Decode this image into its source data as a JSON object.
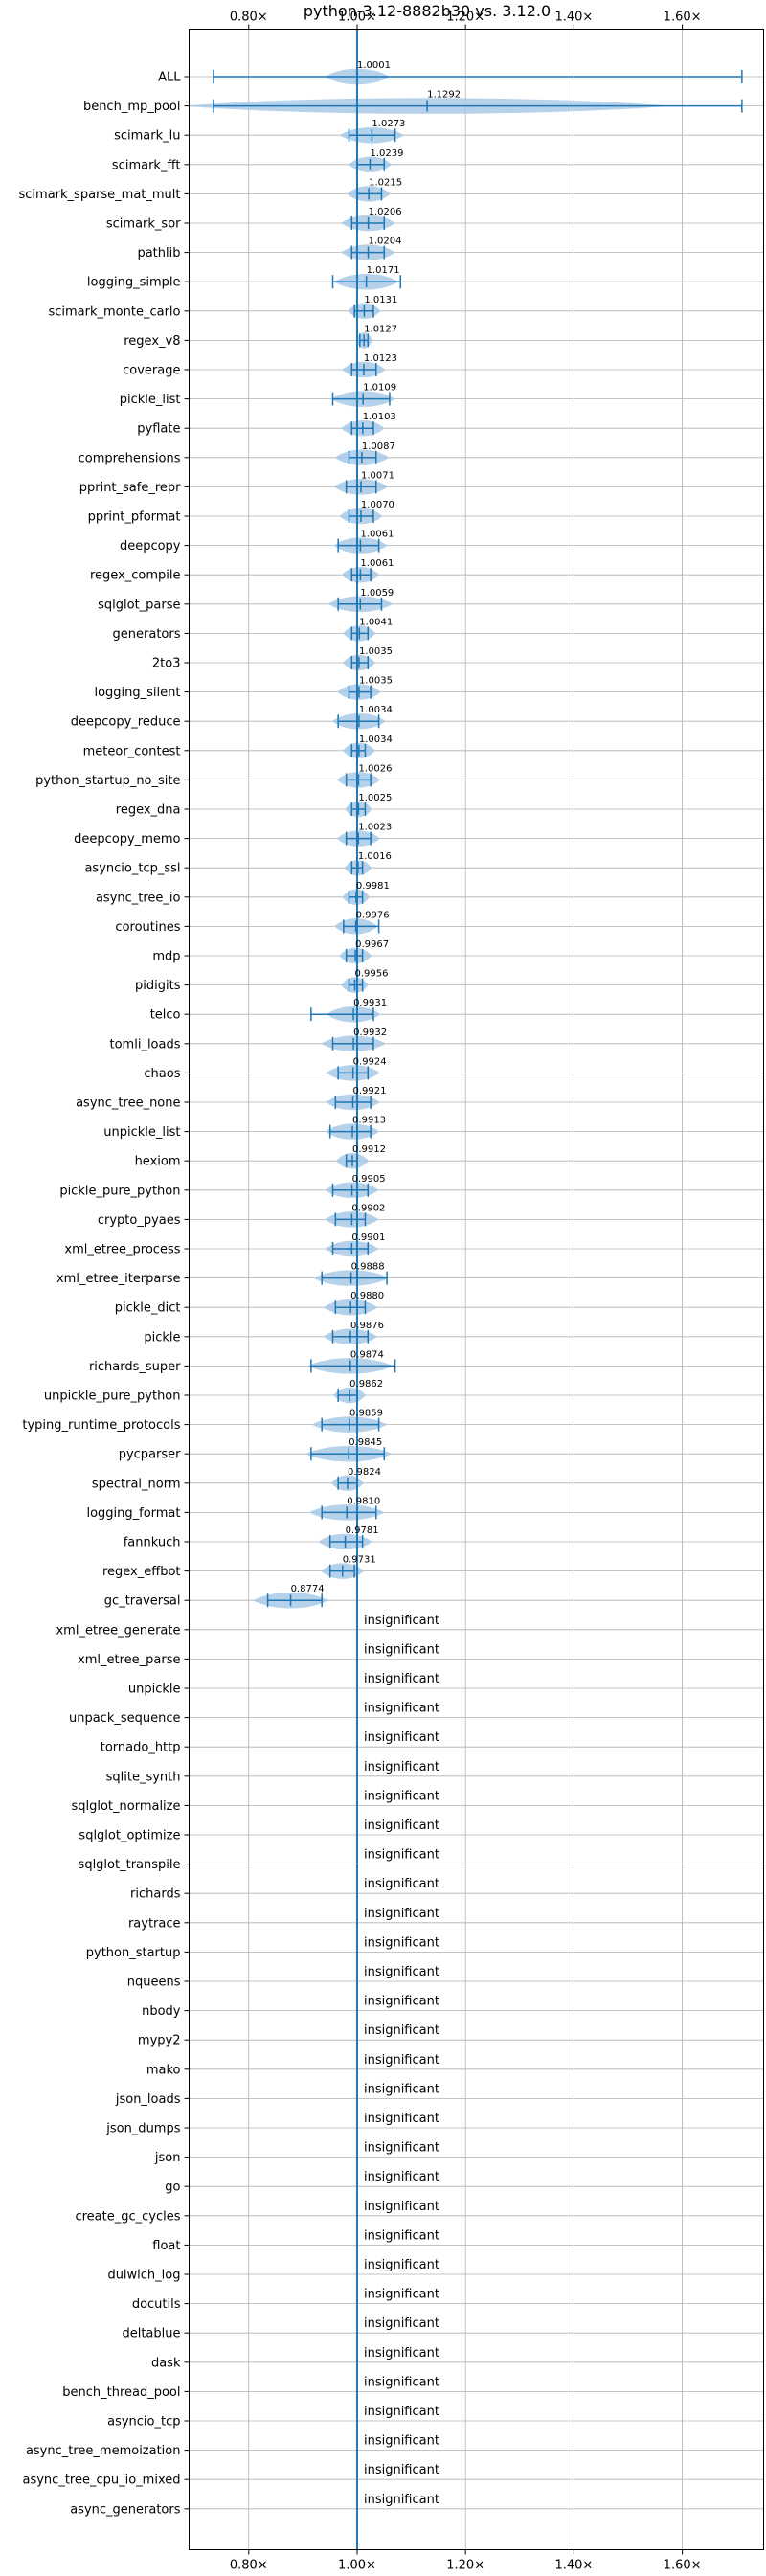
{
  "chart_data": {
    "type": "violin",
    "title": "python-3.12-8882b30 vs. 3.12.0",
    "x_ticks": [
      {
        "value": 0.8,
        "label": "0.80×"
      },
      {
        "value": 1.0,
        "label": "1.00×"
      },
      {
        "value": 1.2,
        "label": "1.20×"
      },
      {
        "value": 1.4,
        "label": "1.40×"
      },
      {
        "value": 1.6,
        "label": "1.60×"
      }
    ],
    "xlim": [
      0.69,
      1.75
    ],
    "reference_line": 1.0,
    "grid": true,
    "insignificant_label": "insignificant",
    "colors": {
      "violin": "#a9c9e6",
      "errorbar": "#1f77b4",
      "refline": "#1f77b4",
      "grid": "#b0b0b0"
    },
    "rows": [
      {
        "name": "ALL",
        "mean": 1.0001,
        "label": "1.0001",
        "lo": 0.735,
        "hi": 1.71,
        "w": 0.06
      },
      {
        "name": "bench_mp_pool",
        "mean": 1.1292,
        "label": "1.1292",
        "lo": 0.735,
        "hi": 1.71,
        "w": 0.45
      },
      {
        "name": "scimark_lu",
        "mean": 1.0273,
        "label": "1.0273",
        "lo": 0.985,
        "hi": 1.07,
        "w": 0.06
      },
      {
        "name": "scimark_fft",
        "mean": 1.0239,
        "label": "1.0239",
        "lo": 1.0,
        "hi": 1.05,
        "w": 0.04
      },
      {
        "name": "scimark_sparse_mat_mult",
        "mean": 1.0215,
        "label": "1.0215",
        "lo": 1.0,
        "hi": 1.045,
        "w": 0.04
      },
      {
        "name": "scimark_sor",
        "mean": 1.0206,
        "label": "1.0206",
        "lo": 0.99,
        "hi": 1.05,
        "w": 0.05
      },
      {
        "name": "pathlib",
        "mean": 1.0204,
        "label": "1.0204",
        "lo": 0.99,
        "hi": 1.05,
        "w": 0.05
      },
      {
        "name": "logging_simple",
        "mean": 1.0171,
        "label": "1.0171",
        "lo": 0.955,
        "hi": 1.08,
        "w": 0.06
      },
      {
        "name": "scimark_monte_carlo",
        "mean": 1.0131,
        "label": "1.0131",
        "lo": 0.995,
        "hi": 1.03,
        "w": 0.03
      },
      {
        "name": "regex_v8",
        "mean": 1.0127,
        "label": "1.0127",
        "lo": 1.005,
        "hi": 1.02,
        "w": 0.015
      },
      {
        "name": "coverage",
        "mean": 1.0123,
        "label": "1.0123",
        "lo": 0.99,
        "hi": 1.035,
        "w": 0.04
      },
      {
        "name": "pickle_list",
        "mean": 1.0109,
        "label": "1.0109",
        "lo": 0.955,
        "hi": 1.06,
        "w": 0.06
      },
      {
        "name": "pyflate",
        "mean": 1.0103,
        "label": "1.0103",
        "lo": 0.99,
        "hi": 1.03,
        "w": 0.04
      },
      {
        "name": "comprehensions",
        "mean": 1.0087,
        "label": "1.0087",
        "lo": 0.985,
        "hi": 1.035,
        "w": 0.05
      },
      {
        "name": "pprint_safe_repr",
        "mean": 1.0071,
        "label": "1.0071",
        "lo": 0.98,
        "hi": 1.035,
        "w": 0.05
      },
      {
        "name": "pprint_pformat",
        "mean": 1.007,
        "label": "1.0070",
        "lo": 0.985,
        "hi": 1.03,
        "w": 0.04
      },
      {
        "name": "deepcopy",
        "mean": 1.0061,
        "label": "1.0061",
        "lo": 0.965,
        "hi": 1.04,
        "w": 0.05
      },
      {
        "name": "regex_compile",
        "mean": 1.0061,
        "label": "1.0061",
        "lo": 0.99,
        "hi": 1.025,
        "w": 0.035
      },
      {
        "name": "sqlglot_parse",
        "mean": 1.0059,
        "label": "1.0059",
        "lo": 0.965,
        "hi": 1.045,
        "w": 0.06
      },
      {
        "name": "generators",
        "mean": 1.0041,
        "label": "1.0041",
        "lo": 0.99,
        "hi": 1.02,
        "w": 0.03
      },
      {
        "name": "2to3",
        "mean": 1.0035,
        "label": "1.0035",
        "lo": 0.99,
        "hi": 1.02,
        "w": 0.03
      },
      {
        "name": "logging_silent",
        "mean": 1.0035,
        "label": "1.0035",
        "lo": 0.985,
        "hi": 1.025,
        "w": 0.04
      },
      {
        "name": "deepcopy_reduce",
        "mean": 1.0034,
        "label": "1.0034",
        "lo": 0.965,
        "hi": 1.04,
        "w": 0.05
      },
      {
        "name": "meteor_contest",
        "mean": 1.0034,
        "label": "1.0034",
        "lo": 0.99,
        "hi": 1.015,
        "w": 0.03
      },
      {
        "name": "python_startup_no_site",
        "mean": 1.0026,
        "label": "1.0026",
        "lo": 0.98,
        "hi": 1.025,
        "w": 0.04
      },
      {
        "name": "regex_dna",
        "mean": 1.0025,
        "label": "1.0025",
        "lo": 0.99,
        "hi": 1.015,
        "w": 0.025
      },
      {
        "name": "deepcopy_memo",
        "mean": 1.0023,
        "label": "1.0023",
        "lo": 0.98,
        "hi": 1.025,
        "w": 0.04
      },
      {
        "name": "asyncio_tcp_ssl",
        "mean": 1.0016,
        "label": "1.0016",
        "lo": 0.99,
        "hi": 1.01,
        "w": 0.025
      },
      {
        "name": "async_tree_io",
        "mean": 0.9981,
        "label": "0.9981",
        "lo": 0.985,
        "hi": 1.01,
        "w": 0.025
      },
      {
        "name": "coroutines",
        "mean": 0.9976,
        "label": "0.9976",
        "lo": 0.975,
        "hi": 1.04,
        "w": 0.04
      },
      {
        "name": "mdp",
        "mean": 0.9967,
        "label": "0.9967",
        "lo": 0.98,
        "hi": 1.01,
        "w": 0.03
      },
      {
        "name": "pidigits",
        "mean": 0.9956,
        "label": "0.9956",
        "lo": 0.985,
        "hi": 1.01,
        "w": 0.025
      },
      {
        "name": "telco",
        "mean": 0.9931,
        "label": "0.9931",
        "lo": 0.915,
        "hi": 1.03,
        "w": 0.05
      },
      {
        "name": "tomli_loads",
        "mean": 0.9932,
        "label": "0.9932",
        "lo": 0.955,
        "hi": 1.03,
        "w": 0.06
      },
      {
        "name": "chaos",
        "mean": 0.9924,
        "label": "0.9924",
        "lo": 0.965,
        "hi": 1.02,
        "w": 0.05
      },
      {
        "name": "async_tree_none",
        "mean": 0.9921,
        "label": "0.9921",
        "lo": 0.96,
        "hi": 1.025,
        "w": 0.05
      },
      {
        "name": "unpickle_list",
        "mean": 0.9913,
        "label": "0.9913",
        "lo": 0.95,
        "hi": 1.025,
        "w": 0.05
      },
      {
        "name": "hexiom",
        "mean": 0.9912,
        "label": "0.9912",
        "lo": 0.98,
        "hi": 1.0,
        "w": 0.03
      },
      {
        "name": "pickle_pure_python",
        "mean": 0.9905,
        "label": "0.9905",
        "lo": 0.955,
        "hi": 1.02,
        "w": 0.05
      },
      {
        "name": "crypto_pyaes",
        "mean": 0.9902,
        "label": "0.9902",
        "lo": 0.96,
        "hi": 1.015,
        "w": 0.05
      },
      {
        "name": "xml_etree_process",
        "mean": 0.9901,
        "label": "0.9901",
        "lo": 0.955,
        "hi": 1.02,
        "w": 0.05
      },
      {
        "name": "xml_etree_iterparse",
        "mean": 0.9888,
        "label": "0.9888",
        "lo": 0.935,
        "hi": 1.055,
        "w": 0.07
      },
      {
        "name": "pickle_dict",
        "mean": 0.988,
        "label": "0.9880",
        "lo": 0.96,
        "hi": 1.015,
        "w": 0.05
      },
      {
        "name": "pickle",
        "mean": 0.9876,
        "label": "0.9876",
        "lo": 0.955,
        "hi": 1.02,
        "w": 0.05
      },
      {
        "name": "richards_super",
        "mean": 0.9874,
        "label": "0.9874",
        "lo": 0.915,
        "hi": 1.07,
        "w": 0.08
      },
      {
        "name": "unpickle_pure_python",
        "mean": 0.9862,
        "label": "0.9862",
        "lo": 0.965,
        "hi": 1.0,
        "w": 0.03
      },
      {
        "name": "typing_runtime_protocols",
        "mean": 0.9859,
        "label": "0.9859",
        "lo": 0.935,
        "hi": 1.04,
        "w": 0.07
      },
      {
        "name": "pycparser",
        "mean": 0.9845,
        "label": "0.9845",
        "lo": 0.915,
        "hi": 1.05,
        "w": 0.08
      },
      {
        "name": "spectral_norm",
        "mean": 0.9824,
        "label": "0.9824",
        "lo": 0.965,
        "hi": 1.0,
        "w": 0.03
      },
      {
        "name": "logging_format",
        "mean": 0.981,
        "label": "0.9810",
        "lo": 0.935,
        "hi": 1.035,
        "w": 0.07
      },
      {
        "name": "fannkuch",
        "mean": 0.9781,
        "label": "0.9781",
        "lo": 0.95,
        "hi": 1.01,
        "w": 0.05
      },
      {
        "name": "regex_effbot",
        "mean": 0.9731,
        "label": "0.9731",
        "lo": 0.95,
        "hi": 0.995,
        "w": 0.04
      },
      {
        "name": "gc_traversal",
        "mean": 0.8774,
        "label": "0.8774",
        "lo": 0.835,
        "hi": 0.935,
        "w": 0.07
      },
      {
        "name": "xml_etree_generate",
        "insignificant": true
      },
      {
        "name": "xml_etree_parse",
        "insignificant": true
      },
      {
        "name": "unpickle",
        "insignificant": true
      },
      {
        "name": "unpack_sequence",
        "insignificant": true
      },
      {
        "name": "tornado_http",
        "insignificant": true
      },
      {
        "name": "sqlite_synth",
        "insignificant": true
      },
      {
        "name": "sqlglot_normalize",
        "insignificant": true
      },
      {
        "name": "sqlglot_optimize",
        "insignificant": true
      },
      {
        "name": "sqlglot_transpile",
        "insignificant": true
      },
      {
        "name": "richards",
        "insignificant": true
      },
      {
        "name": "raytrace",
        "insignificant": true
      },
      {
        "name": "python_startup",
        "insignificant": true
      },
      {
        "name": "nqueens",
        "insignificant": true
      },
      {
        "name": "nbody",
        "insignificant": true
      },
      {
        "name": "mypy2",
        "insignificant": true
      },
      {
        "name": "mako",
        "insignificant": true
      },
      {
        "name": "json_loads",
        "insignificant": true
      },
      {
        "name": "json_dumps",
        "insignificant": true
      },
      {
        "name": "json",
        "insignificant": true
      },
      {
        "name": "go",
        "insignificant": true
      },
      {
        "name": "create_gc_cycles",
        "insignificant": true
      },
      {
        "name": "float",
        "insignificant": true
      },
      {
        "name": "dulwich_log",
        "insignificant": true
      },
      {
        "name": "docutils",
        "insignificant": true
      },
      {
        "name": "deltablue",
        "insignificant": true
      },
      {
        "name": "dask",
        "insignificant": true
      },
      {
        "name": "bench_thread_pool",
        "insignificant": true
      },
      {
        "name": "asyncio_tcp",
        "insignificant": true
      },
      {
        "name": "async_tree_memoization",
        "insignificant": true
      },
      {
        "name": "async_tree_cpu_io_mixed",
        "insignificant": true
      },
      {
        "name": "async_generators",
        "insignificant": true
      }
    ]
  }
}
